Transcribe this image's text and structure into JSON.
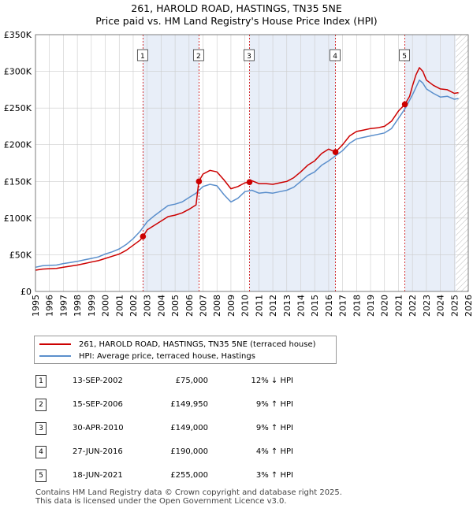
{
  "title_line1": "261, HAROLD ROAD, HASTINGS, TN35 5NE",
  "title_line2": "Price paid vs. HM Land Registry's House Price Index (HPI)",
  "legend": {
    "property_label": "261, HAROLD ROAD, HASTINGS, TN35 5NE (terraced house)",
    "hpi_label": "HPI: Average price, terraced house, Hastings"
  },
  "colors": {
    "property": "#cc0000",
    "hpi": "#5b8fcc",
    "band": "#e8eef8",
    "marker_line": "#cc0000",
    "grid": "#cccccc"
  },
  "transactions": [
    {
      "num": "1",
      "date": "13-SEP-2002",
      "price": "£75,000",
      "hpi": "12% ↓ HPI"
    },
    {
      "num": "2",
      "date": "15-SEP-2006",
      "price": "£149,950",
      "hpi": "9% ↑ HPI"
    },
    {
      "num": "3",
      "date": "30-APR-2010",
      "price": "£149,000",
      "hpi": "9% ↑ HPI"
    },
    {
      "num": "4",
      "date": "27-JUN-2016",
      "price": "£190,000",
      "hpi": "4% ↑ HPI"
    },
    {
      "num": "5",
      "date": "18-JUN-2021",
      "price": "£255,000",
      "hpi": "3% ↑ HPI"
    }
  ],
  "footer_line1": "Contains HM Land Registry data © Crown copyright and database right 2025.",
  "footer_line2": "This data is licensed under the Open Government Licence v3.0.",
  "chart_data": {
    "type": "line",
    "title": "261, HAROLD ROAD, HASTINGS, TN35 5NE",
    "subtitle": "Price paid vs. HM Land Registry's House Price Index (HPI)",
    "xlabel": "",
    "ylabel": "",
    "xlim": [
      1995,
      2026
    ],
    "ylim": [
      0,
      350000
    ],
    "x_ticks": [
      1995,
      1996,
      1997,
      1998,
      1999,
      2000,
      2001,
      2002,
      2003,
      2004,
      2005,
      2006,
      2007,
      2008,
      2009,
      2010,
      2011,
      2012,
      2013,
      2014,
      2015,
      2016,
      2017,
      2018,
      2019,
      2020,
      2021,
      2022,
      2023,
      2024,
      2025,
      2026
    ],
    "y_ticks": [
      {
        "value": 0,
        "label": "£0"
      },
      {
        "value": 50000,
        "label": "£50K"
      },
      {
        "value": 100000,
        "label": "£100K"
      },
      {
        "value": 150000,
        "label": "£150K"
      },
      {
        "value": 200000,
        "label": "£200K"
      },
      {
        "value": 250000,
        "label": "£250K"
      },
      {
        "value": 300000,
        "label": "£300K"
      },
      {
        "value": 350000,
        "label": "£350K"
      }
    ],
    "grid": true,
    "future_hatch_from": 2025.1,
    "sales": [
      {
        "num": "1",
        "x": 2002.7,
        "value": 75000
      },
      {
        "num": "2",
        "x": 2006.71,
        "value": 149950
      },
      {
        "num": "3",
        "x": 2010.33,
        "value": 149000
      },
      {
        "num": "4",
        "x": 2016.49,
        "value": 190000
      },
      {
        "num": "5",
        "x": 2021.46,
        "value": 255000
      }
    ],
    "series": [
      {
        "name": "HPI: Average price, terraced house, Hastings",
        "x": [
          1995,
          1995.5,
          1996,
          1996.5,
          1997,
          1997.5,
          1998,
          1998.5,
          1999,
          1999.5,
          2000,
          2000.5,
          2001,
          2001.5,
          2002,
          2002.5,
          2003,
          2003.5,
          2004,
          2004.5,
          2005,
          2005.5,
          2006,
          2006.5,
          2007,
          2007.5,
          2008,
          2008.5,
          2009,
          2009.5,
          2010,
          2010.5,
          2011,
          2011.5,
          2012,
          2012.5,
          2013,
          2013.5,
          2014,
          2014.5,
          2015,
          2015.5,
          2016,
          2016.5,
          2017,
          2017.5,
          2018,
          2018.5,
          2019,
          2019.5,
          2020,
          2020.5,
          2021,
          2021.5,
          2022,
          2022.25,
          2022.5,
          2022.75,
          2023,
          2023.5,
          2024,
          2024.5,
          2025,
          2025.3
        ],
        "values": [
          33000,
          35000,
          35500,
          36000,
          38000,
          39500,
          41000,
          43000,
          45000,
          47000,
          51000,
          54000,
          58000,
          64000,
          72000,
          82000,
          95000,
          103000,
          110000,
          117000,
          119000,
          122000,
          128000,
          134000,
          143000,
          146000,
          144000,
          132000,
          122000,
          127000,
          136000,
          138000,
          134000,
          135000,
          134000,
          136000,
          138000,
          142000,
          150000,
          158000,
          163000,
          172000,
          178000,
          185000,
          192000,
          202000,
          208000,
          210000,
          212000,
          214000,
          216000,
          222000,
          236000,
          250000,
          268000,
          278000,
          288000,
          284000,
          276000,
          270000,
          265000,
          266000,
          262000,
          263000
        ]
      },
      {
        "name": "261, HAROLD ROAD, HASTINGS, TN35 5NE (terraced house)",
        "x": [
          1995,
          1995.5,
          1996,
          1996.5,
          1997,
          1997.5,
          1998,
          1998.5,
          1999,
          1999.5,
          2000,
          2000.5,
          2001,
          2001.5,
          2002,
          2002.5,
          2002.7,
          2003,
          2003.5,
          2004,
          2004.5,
          2005,
          2005.5,
          2006,
          2006.5,
          2006.7,
          2007,
          2007.5,
          2008,
          2008.5,
          2009,
          2009.5,
          2010,
          2010.33,
          2010.5,
          2011,
          2011.5,
          2012,
          2012.5,
          2013,
          2013.5,
          2014,
          2014.5,
          2015,
          2015.5,
          2016,
          2016.49,
          2016.8,
          2017,
          2017.5,
          2018,
          2018.5,
          2019,
          2019.5,
          2020,
          2020.5,
          2021,
          2021.46,
          2021.8,
          2022,
          2022.25,
          2022.5,
          2022.75,
          2023,
          2023.5,
          2024,
          2024.5,
          2025,
          2025.3
        ],
        "values": [
          29000,
          30500,
          31000,
          31500,
          33000,
          34500,
          36000,
          38000,
          40000,
          42000,
          45000,
          48000,
          51000,
          56000,
          63000,
          70000,
          75000,
          84000,
          90000,
          96000,
          102000,
          104000,
          107000,
          112000,
          118000,
          149950,
          160000,
          165000,
          163000,
          152000,
          140000,
          143000,
          148000,
          149000,
          151000,
          147000,
          147000,
          146000,
          148000,
          150000,
          155000,
          163000,
          172000,
          178000,
          188000,
          194000,
          190000,
          196000,
          200000,
          212000,
          218000,
          220000,
          222000,
          223000,
          225000,
          232000,
          246000,
          255000,
          266000,
          280000,
          295000,
          305000,
          300000,
          288000,
          281000,
          276000,
          275000,
          270000,
          271000
        ]
      }
    ]
  }
}
